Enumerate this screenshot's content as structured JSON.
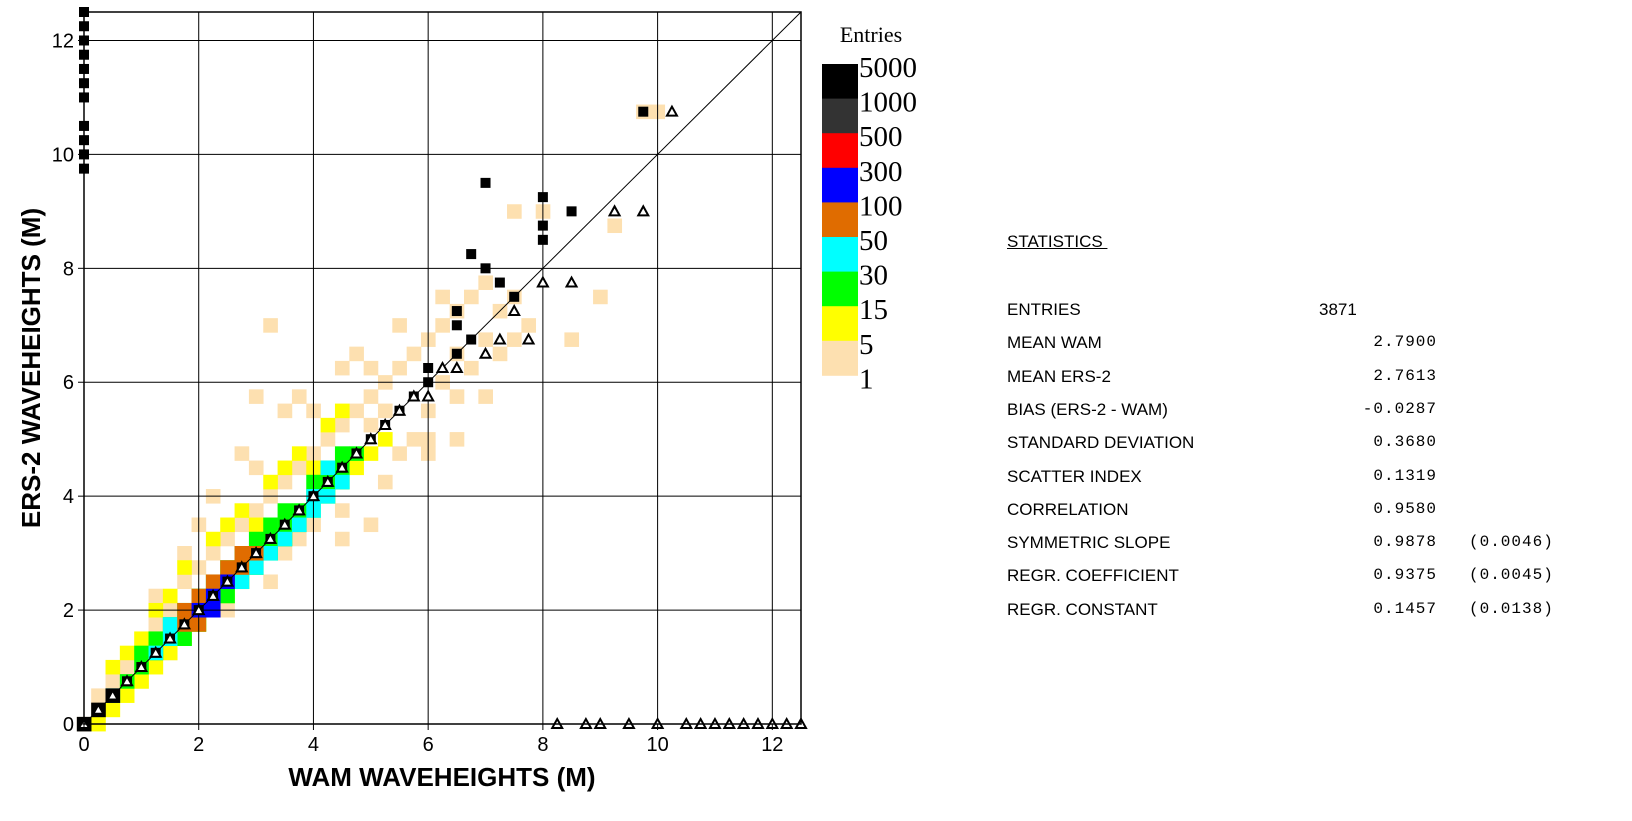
{
  "chart_data": {
    "type": "heatmap",
    "title": "",
    "xlabel": "WAM  WAVEHEIGHTS (M)",
    "ylabel": "ERS-2  WAVEHEIGHTS (M)",
    "xlim": [
      0,
      12.5
    ],
    "ylim": [
      0,
      12.5
    ],
    "x_ticks": [
      0,
      2,
      4,
      6,
      8,
      10,
      12
    ],
    "y_ticks": [
      0,
      2,
      4,
      6,
      8,
      10,
      12
    ],
    "grid": true,
    "cell_size": 0.25,
    "legend": {
      "title": "Entries",
      "position": "right",
      "levels": [
        {
          "label": "5000",
          "color": "#000000"
        },
        {
          "label": "1000",
          "color": "#333333"
        },
        {
          "label": "500",
          "color": "#ff0000"
        },
        {
          "label": "300",
          "color": "#0000ff"
        },
        {
          "label": "100",
          "color": "#e06c00"
        },
        {
          "label": "50",
          "color": "#00ffff"
        },
        {
          "label": "30",
          "color": "#00ff00"
        },
        {
          "label": "15",
          "color": "#ffff00"
        },
        {
          "label": "5",
          "color": "#fde0b0"
        },
        {
          "label": "1",
          "color": ""
        }
      ]
    },
    "cells": {
      "beige": [
        [
          0,
          0
        ],
        [
          0.25,
          0.25
        ],
        [
          0.25,
          0.5
        ],
        [
          0.5,
          0.75
        ],
        [
          0.75,
          1.0
        ],
        [
          1.0,
          1.25
        ],
        [
          1.25,
          1.75
        ],
        [
          1.5,
          2.0
        ],
        [
          1.25,
          2.25
        ],
        [
          1.75,
          2.5
        ],
        [
          2.0,
          2.75
        ],
        [
          2.25,
          3.0
        ],
        [
          2.5,
          3.25
        ],
        [
          2.0,
          3.5
        ],
        [
          2.75,
          3.5
        ],
        [
          3.0,
          3.75
        ],
        [
          3.25,
          4.0
        ],
        [
          3.5,
          4.25
        ],
        [
          3.0,
          4.5
        ],
        [
          2.75,
          4.75
        ],
        [
          3.75,
          4.5
        ],
        [
          4.0,
          4.75
        ],
        [
          4.25,
          5.0
        ],
        [
          4.5,
          5.25
        ],
        [
          4.75,
          5.5
        ],
        [
          5.0,
          5.75
        ],
        [
          5.25,
          6.0
        ],
        [
          5.5,
          6.25
        ],
        [
          5.75,
          6.5
        ],
        [
          6.0,
          6.75
        ],
        [
          6.25,
          7.0
        ],
        [
          6.5,
          7.25
        ],
        [
          6.75,
          7.5
        ],
        [
          7.0,
          7.75
        ],
        [
          7.25,
          7.25
        ],
        [
          5.0,
          6.25
        ],
        [
          4.75,
          6.5
        ],
        [
          5.5,
          7.0
        ],
        [
          6.0,
          5.5
        ],
        [
          6.5,
          5.75
        ],
        [
          7.0,
          5.75
        ],
        [
          6.75,
          6.25
        ],
        [
          5.5,
          4.75
        ],
        [
          6.0,
          4.75
        ],
        [
          6.5,
          5.0
        ],
        [
          5.25,
          4.25
        ],
        [
          4.5,
          3.75
        ],
        [
          5.0,
          3.5
        ],
        [
          4.0,
          3.5
        ],
        [
          3.5,
          3.0
        ],
        [
          3.25,
          2.5
        ],
        [
          4.5,
          3.25
        ],
        [
          7.5,
          6.75
        ],
        [
          7.75,
          7.0
        ],
        [
          8.5,
          6.75
        ],
        [
          9.0,
          7.5
        ],
        [
          9.25,
          8.75
        ],
        [
          9.75,
          10.75
        ],
        [
          10.0,
          10.75
        ],
        [
          7.5,
          9.0
        ],
        [
          8.0,
          9.0
        ],
        [
          6.25,
          7.5
        ],
        [
          3.25,
          7.0
        ],
        [
          4.5,
          6.25
        ],
        [
          3.0,
          5.75
        ],
        [
          3.5,
          5.5
        ],
        [
          2.25,
          4.0
        ],
        [
          1.75,
          3.0
        ],
        [
          2.5,
          2.0
        ],
        [
          1.75,
          1.5
        ],
        [
          1.5,
          1.25
        ],
        [
          1.0,
          0.75
        ],
        [
          5.75,
          5.0
        ],
        [
          6.25,
          6.0
        ],
        [
          6.0,
          5.0
        ],
        [
          7.5,
          7.5
        ],
        [
          7.25,
          6.5
        ],
        [
          3.75,
          3.25
        ],
        [
          5.0,
          5.25
        ],
        [
          4.0,
          5.5
        ],
        [
          3.75,
          5.75
        ],
        [
          5.25,
          5.5
        ],
        [
          6.5,
          6.5
        ],
        [
          7.0,
          6.75
        ]
      ],
      "yellow": [
        [
          0.25,
          0
        ],
        [
          0.5,
          0.25
        ],
        [
          0.75,
          0.5
        ],
        [
          1.0,
          0.75
        ],
        [
          1.25,
          1.0
        ],
        [
          1.5,
          1.25
        ],
        [
          1.75,
          1.5
        ],
        [
          2.0,
          1.75
        ],
        [
          2.25,
          2.0
        ],
        [
          2.5,
          2.25
        ],
        [
          2.75,
          2.5
        ],
        [
          3.0,
          2.75
        ],
        [
          3.25,
          3.0
        ],
        [
          3.5,
          3.25
        ],
        [
          3.75,
          3.5
        ],
        [
          4.0,
          3.75
        ],
        [
          4.25,
          4.0
        ],
        [
          4.5,
          4.25
        ],
        [
          4.75,
          4.5
        ],
        [
          5.0,
          4.75
        ],
        [
          5.25,
          5.0
        ],
        [
          0.5,
          1.0
        ],
        [
          0.75,
          1.25
        ],
        [
          1.0,
          1.5
        ],
        [
          1.25,
          2.0
        ],
        [
          1.5,
          2.25
        ],
        [
          1.75,
          2.75
        ],
        [
          2.25,
          3.25
        ],
        [
          2.5,
          3.5
        ],
        [
          2.75,
          3.75
        ],
        [
          3.25,
          4.25
        ],
        [
          3.5,
          4.5
        ],
        [
          3.75,
          4.75
        ],
        [
          4.25,
          5.25
        ],
        [
          4.5,
          5.5
        ],
        [
          2.75,
          3.0
        ],
        [
          4.0,
          4.5
        ],
        [
          3.0,
          3.5
        ],
        [
          1.25,
          1.5
        ]
      ],
      "green": [
        [
          0.75,
          0.75
        ],
        [
          1.0,
          1.0
        ],
        [
          1.25,
          1.25
        ],
        [
          1.5,
          1.5
        ],
        [
          1.75,
          1.75
        ],
        [
          2.0,
          2.0
        ],
        [
          2.25,
          2.25
        ],
        [
          2.5,
          2.5
        ],
        [
          2.75,
          2.75
        ],
        [
          3.0,
          3.0
        ],
        [
          3.25,
          3.25
        ],
        [
          3.5,
          3.5
        ],
        [
          3.75,
          3.75
        ],
        [
          4.0,
          4.0
        ],
        [
          4.25,
          4.25
        ],
        [
          4.5,
          4.5
        ],
        [
          4.75,
          4.75
        ],
        [
          1.0,
          1.25
        ],
        [
          1.25,
          1.5
        ],
        [
          1.5,
          1.75
        ],
        [
          1.75,
          2.0
        ],
        [
          2.0,
          2.25
        ],
        [
          2.25,
          2.5
        ],
        [
          2.5,
          2.75
        ],
        [
          2.75,
          3.0
        ],
        [
          3.0,
          3.25
        ],
        [
          3.25,
          3.5
        ],
        [
          3.5,
          3.75
        ],
        [
          4.0,
          4.25
        ],
        [
          4.25,
          4.5
        ],
        [
          4.5,
          4.75
        ],
        [
          1.75,
          1.5
        ],
        [
          2.0,
          1.75
        ],
        [
          2.25,
          2.0
        ],
        [
          2.5,
          2.25
        ],
        [
          2.75,
          2.5
        ],
        [
          3.0,
          2.75
        ],
        [
          3.25,
          3.0
        ],
        [
          3.5,
          3.25
        ],
        [
          3.75,
          3.5
        ],
        [
          4.25,
          4.0
        ],
        [
          4.5,
          4.25
        ]
      ],
      "cyan": [
        [
          0.5,
          0.5
        ],
        [
          1.25,
          1.25
        ],
        [
          1.5,
          1.5
        ],
        [
          2.75,
          2.5
        ],
        [
          3.0,
          2.75
        ],
        [
          3.25,
          3.0
        ],
        [
          3.5,
          3.25
        ],
        [
          3.75,
          3.5
        ],
        [
          4.0,
          3.75
        ],
        [
          4.25,
          4.0
        ],
        [
          4.5,
          4.25
        ],
        [
          4.25,
          4.5
        ],
        [
          1.5,
          1.75
        ],
        [
          4.0,
          4.0
        ]
      ],
      "orange": [
        [
          1.75,
          1.75
        ],
        [
          2.0,
          2.0
        ],
        [
          2.25,
          2.25
        ],
        [
          2.5,
          2.5
        ],
        [
          2.75,
          2.75
        ],
        [
          3.0,
          3.0
        ],
        [
          2.0,
          2.25
        ],
        [
          2.25,
          2.5
        ],
        [
          2.5,
          2.75
        ],
        [
          2.75,
          3.0
        ],
        [
          1.75,
          2.0
        ],
        [
          2.0,
          1.75
        ],
        [
          2.25,
          2.0
        ]
      ],
      "blue": [
        [
          2.0,
          2.0
        ],
        [
          2.25,
          2.25
        ],
        [
          2.5,
          2.5
        ],
        [
          2.25,
          2.0
        ]
      ],
      "black": [
        [
          0,
          0
        ],
        [
          0.25,
          0.25
        ],
        [
          0.5,
          0.5
        ]
      ]
    },
    "mean_squares": [
      [
        0,
        0
      ],
      [
        0.25,
        0.25
      ],
      [
        0.5,
        0.5
      ],
      [
        0.75,
        0.75
      ],
      [
        1.0,
        1.0
      ],
      [
        1.25,
        1.25
      ],
      [
        1.5,
        1.5
      ],
      [
        1.75,
        1.75
      ],
      [
        2.0,
        2.0
      ],
      [
        2.25,
        2.25
      ],
      [
        2.5,
        2.5
      ],
      [
        2.75,
        2.75
      ],
      [
        3.0,
        3.0
      ],
      [
        3.25,
        3.25
      ],
      [
        3.5,
        3.5
      ],
      [
        3.75,
        3.75
      ],
      [
        4.0,
        4.0
      ],
      [
        4.25,
        4.25
      ],
      [
        4.5,
        4.5
      ],
      [
        4.75,
        4.75
      ],
      [
        5.0,
        5.0
      ],
      [
        5.25,
        5.25
      ],
      [
        5.5,
        5.5
      ],
      [
        5.75,
        5.75
      ],
      [
        6.0,
        6.0
      ],
      [
        6.0,
        6.25
      ],
      [
        6.5,
        6.5
      ],
      [
        6.5,
        7.0
      ],
      [
        6.5,
        7.25
      ],
      [
        6.75,
        6.75
      ],
      [
        6.75,
        8.25
      ],
      [
        7.0,
        8.0
      ],
      [
        7.25,
        7.75
      ],
      [
        7.5,
        7.5
      ],
      [
        7.0,
        9.5
      ],
      [
        8.0,
        8.5
      ],
      [
        8.0,
        8.75
      ],
      [
        8.0,
        9.25
      ],
      [
        8.5,
        9.0
      ],
      [
        9.75,
        10.75
      ],
      [
        0,
        9.75
      ],
      [
        0,
        10.0
      ],
      [
        0,
        10.25
      ],
      [
        0,
        10.5
      ],
      [
        0,
        11.0
      ],
      [
        0,
        11.25
      ],
      [
        0,
        11.5
      ],
      [
        0,
        11.75
      ],
      [
        0,
        12.0
      ],
      [
        0,
        12.25
      ],
      [
        0,
        12.5
      ]
    ],
    "mean_triangles": [
      [
        0,
        0
      ],
      [
        0.25,
        0.25
      ],
      [
        0.5,
        0.5
      ],
      [
        0.75,
        0.75
      ],
      [
        1.0,
        1.0
      ],
      [
        1.25,
        1.25
      ],
      [
        1.5,
        1.5
      ],
      [
        1.75,
        1.75
      ],
      [
        2.0,
        2.0
      ],
      [
        2.25,
        2.25
      ],
      [
        2.5,
        2.5
      ],
      [
        2.75,
        2.75
      ],
      [
        3.0,
        3.0
      ],
      [
        3.25,
        3.25
      ],
      [
        3.5,
        3.5
      ],
      [
        3.75,
        3.75
      ],
      [
        4.0,
        4.0
      ],
      [
        4.25,
        4.25
      ],
      [
        4.5,
        4.5
      ],
      [
        4.75,
        4.75
      ],
      [
        5.0,
        5.0
      ],
      [
        5.25,
        5.25
      ],
      [
        5.5,
        5.5
      ],
      [
        5.75,
        5.75
      ],
      [
        6.0,
        5.75
      ],
      [
        6.25,
        6.25
      ],
      [
        6.5,
        6.25
      ],
      [
        7.0,
        6.5
      ],
      [
        7.25,
        6.75
      ],
      [
        7.5,
        7.25
      ],
      [
        7.75,
        6.75
      ],
      [
        8.0,
        7.75
      ],
      [
        8.5,
        7.75
      ],
      [
        9.25,
        9.0
      ],
      [
        9.75,
        9.0
      ],
      [
        10.25,
        10.75
      ],
      [
        8.25,
        0
      ],
      [
        8.75,
        0
      ],
      [
        9.0,
        0
      ],
      [
        9.5,
        0
      ],
      [
        10.0,
        0
      ],
      [
        10.5,
        0
      ],
      [
        10.75,
        0
      ],
      [
        11.0,
        0
      ],
      [
        11.25,
        0
      ],
      [
        11.5,
        0
      ],
      [
        11.75,
        0
      ],
      [
        12.0,
        0
      ],
      [
        12.25,
        0
      ],
      [
        12.5,
        0
      ]
    ],
    "diagonal_line": [
      [
        0,
        0
      ],
      [
        12.5,
        12.5
      ]
    ]
  },
  "statistics": {
    "title": "STATISTICS ",
    "rows": [
      {
        "label": "ENTRIES",
        "value": "3871",
        "error": ""
      },
      {
        "label": "MEAN WAM",
        "value": "2.7900",
        "error": ""
      },
      {
        "label": "MEAN ERS-2",
        "value": "2.7613",
        "error": ""
      },
      {
        "label": "BIAS (ERS-2 - WAM)",
        "value": "-0.0287",
        "error": ""
      },
      {
        "label": "STANDARD DEVIATION",
        "value": "0.3680",
        "error": ""
      },
      {
        "label": "SCATTER INDEX",
        "value": "0.1319",
        "error": ""
      },
      {
        "label": "CORRELATION",
        "value": "0.9580",
        "error": ""
      },
      {
        "label": "SYMMETRIC SLOPE",
        "value": "0.9878",
        "error": "(0.0046)"
      },
      {
        "label": "REGR. COEFFICIENT",
        "value": "0.9375",
        "error": "(0.0045)"
      },
      {
        "label": "REGR. CONSTANT",
        "value": "0.1457",
        "error": "(0.0138)"
      }
    ]
  }
}
